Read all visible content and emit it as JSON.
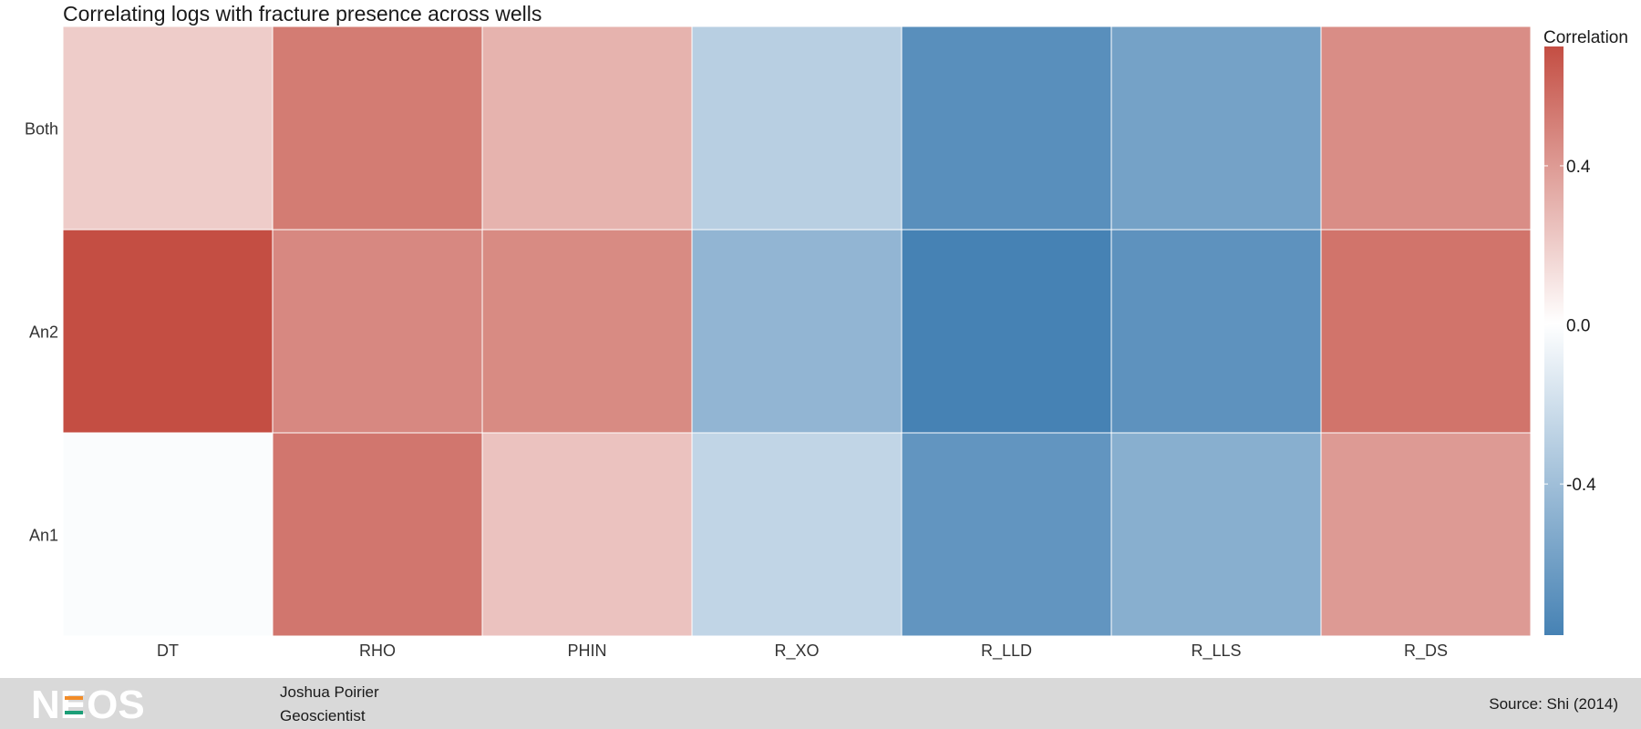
{
  "chart_data": {
    "type": "heatmap",
    "title": "Correlating logs with fracture presence across wells",
    "x_categories": [
      "DT",
      "RHO",
      "PHIN",
      "R_XO",
      "R_LLD",
      "R_LLS",
      "R_DS"
    ],
    "y_categories": [
      "Both",
      "An2",
      "An1"
    ],
    "values": [
      [
        0.2,
        0.52,
        0.3,
        -0.3,
        -0.7,
        -0.58,
        0.45
      ],
      [
        0.7,
        0.47,
        0.46,
        -0.46,
        -0.78,
        -0.68,
        0.55
      ],
      [
        -0.02,
        0.54,
        0.24,
        -0.26,
        -0.66,
        -0.5,
        0.4
      ]
    ],
    "legend": {
      "title": "Correlation",
      "ticks": [
        "0.4",
        "0.0",
        "-0.4"
      ],
      "tick_values": [
        0.4,
        0.0,
        -0.4
      ],
      "range": [
        -0.78,
        0.7
      ],
      "position": "right"
    },
    "colors": {
      "low": "#4682B4",
      "mid": "#FFFFFF",
      "high": "#C44E43"
    }
  },
  "footer": {
    "logo_text": "NEOS",
    "author_name": "Joshua Poirier",
    "author_role": "Geoscientist",
    "source": "Source: Shi (2014)"
  }
}
